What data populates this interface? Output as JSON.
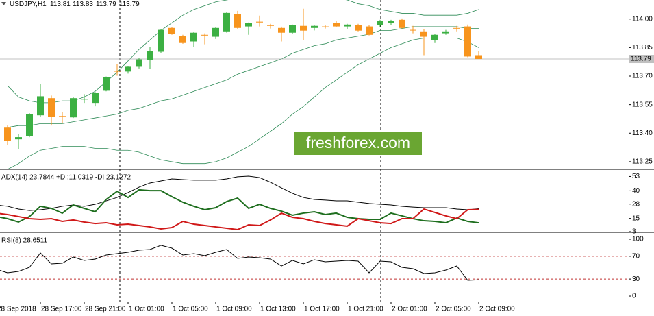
{
  "chart_data": [
    {
      "type": "candlestick",
      "title": "USDJPY,H1",
      "categories": [
        "28 Sep 2018",
        null,
        null,
        null,
        "28 Sep 17:00",
        null,
        null,
        null,
        "28 Sep 21:00",
        null,
        null,
        null,
        "1 Oct 01:00",
        null,
        null,
        null,
        "1 Oct 05:00",
        null,
        null,
        null,
        "1 Oct 09:00",
        null,
        null,
        null,
        "1 Oct 13:00",
        null,
        null,
        null,
        "1 Oct 17:00",
        null,
        null,
        null,
        "1 Oct 21:00",
        null,
        null,
        null,
        "2 Oct 01:00",
        null,
        null,
        null,
        "2 Oct 05:00",
        null,
        null,
        null,
        "2 Oct 09:00"
      ],
      "open": [
        null,
        113.429,
        113.368,
        113.386,
        113.494,
        113.584,
        113.49,
        113.483,
        113.577,
        113.559,
        113.623,
        113.727,
        113.724,
        113.749,
        113.785,
        113.828,
        113.953,
        113.91,
        113.882,
        113.917,
        113.907,
        113.935,
        114.025,
        113.961,
        113.986,
        113.968,
        113.953,
        113.928,
        113.964,
        113.953,
        113.961,
        113.978,
        113.961,
        113.968,
        113.961,
        113.968,
        113.978,
        113.996,
        113.943,
        113.935,
        113.889,
        113.925,
        113.953,
        113.961,
        113.81
      ],
      "high": [
        null,
        113.44,
        113.397,
        113.505,
        113.659,
        113.598,
        113.512,
        113.59,
        113.605,
        113.616,
        113.698,
        113.763,
        113.752,
        113.795,
        113.853,
        113.946,
        113.957,
        113.917,
        113.932,
        113.925,
        113.957,
        114.036,
        114.043,
        113.982,
        114.018,
        113.975,
        113.96,
        113.971,
        114.054,
        113.968,
        113.968,
        113.989,
        113.975,
        113.975,
        113.968,
        113.996,
        113.996,
        114.003,
        113.964,
        113.946,
        113.921,
        113.943,
        113.964,
        113.971,
        113.83
      ],
      "low": [
        null,
        113.336,
        113.315,
        113.379,
        113.487,
        113.44,
        113.451,
        113.48,
        113.559,
        113.541,
        113.62,
        113.702,
        113.713,
        113.74,
        113.738,
        113.82,
        113.917,
        113.87,
        113.853,
        113.867,
        113.895,
        113.928,
        113.946,
        113.917,
        113.961,
        113.95,
        113.882,
        113.921,
        113.889,
        113.94,
        113.95,
        113.957,
        113.946,
        113.935,
        113.914,
        113.957,
        113.968,
        113.95,
        113.925,
        113.81,
        113.874,
        113.917,
        113.935,
        113.799,
        113.79
      ],
      "close": [
        null,
        113.358,
        113.379,
        113.501,
        113.594,
        113.487,
        113.487,
        113.584,
        113.58,
        113.612,
        113.695,
        113.724,
        113.749,
        113.788,
        113.831,
        113.943,
        113.921,
        113.874,
        113.928,
        113.914,
        113.953,
        114.032,
        113.953,
        113.978,
        113.982,
        113.964,
        113.928,
        113.968,
        113.939,
        113.964,
        113.96,
        113.961,
        113.971,
        113.939,
        113.917,
        113.989,
        113.989,
        113.953,
        113.94,
        113.907,
        113.917,
        113.935,
        113.95,
        113.803,
        113.79
      ],
      "up_color": "#3cb043",
      "down_color": "#f7941d",
      "bands": {
        "color": "#2e8b57",
        "upper": [
          null,
          113.65,
          113.59,
          113.57,
          113.56,
          113.56,
          113.57,
          113.57,
          113.59,
          113.62,
          113.67,
          113.72,
          113.78,
          113.84,
          113.89,
          113.94,
          113.98,
          114.02,
          114.05,
          114.07,
          114.09,
          114.1,
          114.11,
          114.12,
          114.12,
          114.12,
          114.12,
          114.12,
          114.12,
          114.12,
          114.11,
          114.11,
          114.1,
          114.08,
          114.07,
          114.05,
          114.04,
          114.03,
          114.03,
          114.02,
          114.02,
          114.02,
          114.02,
          114.03,
          114.05
        ],
        "middle": [
          null,
          113.43,
          113.44,
          113.44,
          113.45,
          113.45,
          113.45,
          113.46,
          113.47,
          113.48,
          113.49,
          113.5,
          113.52,
          113.53,
          113.55,
          113.57,
          113.58,
          113.6,
          113.62,
          113.64,
          113.66,
          113.68,
          113.71,
          113.73,
          113.75,
          113.77,
          113.79,
          113.82,
          113.84,
          113.86,
          113.87,
          113.89,
          113.9,
          113.91,
          113.92,
          113.94,
          113.94,
          113.95,
          113.96,
          113.96,
          113.96,
          113.96,
          113.96,
          113.95,
          113.95
        ],
        "lower": [
          null,
          113.21,
          113.24,
          113.28,
          113.31,
          113.32,
          113.33,
          113.33,
          113.33,
          113.32,
          113.32,
          113.31,
          113.31,
          113.3,
          113.28,
          113.26,
          113.25,
          113.24,
          113.24,
          113.24,
          113.25,
          113.27,
          113.3,
          113.33,
          113.37,
          113.41,
          113.45,
          113.5,
          113.54,
          113.59,
          113.64,
          113.68,
          113.72,
          113.76,
          113.79,
          113.82,
          113.85,
          113.87,
          113.89,
          113.9,
          113.9,
          113.9,
          113.9,
          113.88,
          113.85
        ]
      },
      "current_price_color": "#c0c0c0",
      "ylim": [
        113.21,
        114.1
      ],
      "yticks": [
        {
          "value": 114,
          "label": "114.00"
        },
        113.85,
        {
          "value": 113.7,
          "label": "113.70"
        },
        113.55,
        {
          "value": 113.4,
          "label": "113.40"
        },
        113.25
      ]
    },
    {
      "type": "line",
      "title": "ADX(14) 23.7844 +DI:11.0319 -DI:23.1272",
      "series": [
        {
          "color": "#000000",
          "line_width": 1,
          "values": [
            27.2,
            26.0,
            23.5,
            22.2,
            22.9,
            24.1,
            26.0,
            27.2,
            26.0,
            27.8,
            30.9,
            34.0,
            38.4,
            43.3,
            47.1,
            48.9,
            50.8,
            50.2,
            49.6,
            49.6,
            49.6,
            50.8,
            52.7,
            53.3,
            52.0,
            47.7,
            42.7,
            37.8,
            34.0,
            32.2,
            31.6,
            30.9,
            30.9,
            29.7,
            28.5,
            27.8,
            27.2,
            26.0,
            25.3,
            24.7,
            24.7,
            24.7,
            23.5,
            22.9,
            23.7844
          ]
        },
        {
          "color": "#1e6e1e",
          "line_width": 2,
          "values": [
            16.7,
            14.8,
            11.7,
            16.7,
            26.0,
            24.1,
            19.8,
            27.2,
            24.1,
            21.0,
            32.2,
            39.6,
            34.0,
            40.9,
            40.2,
            40.2,
            34.7,
            29.7,
            26.0,
            22.9,
            24.7,
            30.3,
            33.4,
            24.1,
            27.8,
            24.1,
            21.6,
            17.9,
            19.8,
            21.0,
            18.5,
            19.8,
            16.0,
            14.8,
            14.2,
            14.2,
            19.8,
            17.3,
            14.8,
            12.9,
            12.3,
            11.1,
            15.4,
            12.3,
            11.0319
          ]
        },
        {
          "color": "#d01818",
          "line_width": 2,
          "values": [
            19.8,
            18.5,
            16.7,
            14.8,
            14.2,
            14.8,
            12.3,
            13.6,
            11.7,
            10.4,
            11.1,
            9.2,
            9.8,
            8.6,
            7.3,
            5.5,
            6.7,
            12.3,
            9.8,
            8.6,
            7.3,
            6.1,
            4.9,
            9.2,
            8.6,
            13.6,
            19.8,
            16.0,
            14.8,
            12.3,
            10.4,
            9.2,
            8.0,
            14.8,
            12.9,
            11.1,
            10.4,
            14.8,
            14.8,
            23.5,
            20.4,
            17.3,
            14.8,
            22.9,
            23.1272
          ]
        }
      ],
      "ylim": [
        3,
        57
      ],
      "yticks": [
        53,
        40,
        28,
        15,
        3
      ]
    },
    {
      "type": "line",
      "title": "RSI(8) 28.6511",
      "series": [
        {
          "color": "#000000",
          "line_width": 1,
          "values": [
            47.0,
            41.0,
            43.4,
            50.6,
            75.9,
            56.6,
            57.8,
            68.7,
            62.7,
            65.1,
            72.3,
            74.7,
            77.1,
            80.7,
            81.9,
            89.2,
            84.3,
            72.3,
            74.7,
            71.1,
            77.1,
            81.9,
            66.3,
            68.7,
            67.5,
            65.1,
            53.0,
            62.7,
            56.6,
            63.9,
            60.2,
            61.4,
            62.7,
            61.4,
            41.0,
            61.4,
            60.2,
            50.6,
            48.2,
            39.8,
            41.0,
            45.8,
            53.0,
            27.7,
            28.6511
          ]
        }
      ],
      "levels": [
        70,
        30
      ],
      "level_color": "#c03030",
      "ylim": [
        -9.6,
        108.4
      ],
      "yticks": [
        100,
        70,
        30,
        0
      ]
    }
  ],
  "watermark": "freshforex.com"
}
